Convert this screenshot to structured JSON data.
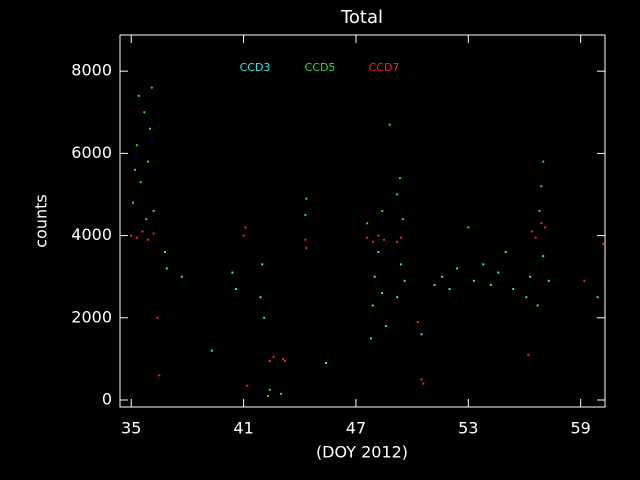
{
  "chart_data": {
    "type": "scatter",
    "title": "Total",
    "x_label": "(DOY 2012)",
    "y_label": "counts",
    "xlim": [
      34.4,
      60.3
    ],
    "ylim": [
      -170,
      8880
    ],
    "xticks": [
      35,
      41,
      47,
      53,
      59
    ],
    "yticks": [
      0,
      2000,
      4000,
      6000,
      8000
    ],
    "series": [
      {
        "name": "CCD3",
        "color": "#33e5e5",
        "x": [
          36.8,
          36.9,
          37.7,
          40.4,
          40.6,
          41.9,
          42.0,
          42.1,
          47.8,
          47.9,
          48.0,
          48.2,
          48.4,
          48.6,
          49.2,
          49.4,
          49.6,
          50.5,
          51.2,
          51.6,
          52.0,
          52.4,
          53.3,
          53.8,
          54.2,
          54.6,
          55.0,
          55.4,
          56.1,
          56.3,
          56.7,
          57.0,
          57.3,
          59.9,
          45.4,
          39.3
        ],
        "values": [
          3600,
          3200,
          3000,
          3100,
          2700,
          2500,
          3300,
          2000,
          1500,
          2300,
          3000,
          3600,
          2600,
          1800,
          2500,
          3300,
          2900,
          1600,
          2800,
          3000,
          2700,
          3200,
          2900,
          3300,
          2800,
          3100,
          3600,
          2700,
          2500,
          3000,
          2300,
          3500,
          2900,
          2500,
          900,
          1200
        ]
      },
      {
        "name": "CCD5",
        "color": "#33dd33",
        "x": [
          35.1,
          35.3,
          35.5,
          35.7,
          35.9,
          36.1,
          36.2,
          35.4,
          35.8,
          36.0,
          35.2,
          42.3,
          42.4,
          43.0,
          44.3,
          44.35,
          47.6,
          48.4,
          49.2,
          49.35,
          49.5,
          48.8,
          56.9,
          57.0,
          56.8,
          53.0
        ],
        "values": [
          4800,
          6200,
          5300,
          7000,
          5800,
          7600,
          4600,
          7400,
          4400,
          6600,
          5600,
          100,
          250,
          150,
          4500,
          4900,
          4300,
          4600,
          5000,
          5400,
          4400,
          6700,
          5200,
          5800,
          4600,
          4200
        ]
      },
      {
        "name": "CCD7",
        "color": "#ff2020",
        "x": [
          35.0,
          35.3,
          35.6,
          35.9,
          36.2,
          36.4,
          36.5,
          41.0,
          41.1,
          42.4,
          42.6,
          43.1,
          43.2,
          44.3,
          44.35,
          47.6,
          47.9,
          48.2,
          48.5,
          49.2,
          49.4,
          50.3,
          50.5,
          50.6,
          56.4,
          56.6,
          56.9,
          57.1,
          59.2,
          60.2,
          41.2,
          56.2
        ],
        "values": [
          4000,
          3950,
          4100,
          3900,
          4050,
          2000,
          600,
          4000,
          4200,
          950,
          1050,
          1000,
          950,
          3900,
          3700,
          3950,
          3850,
          4000,
          3900,
          3850,
          3950,
          1900,
          500,
          400,
          4100,
          3950,
          4300,
          4200,
          2900,
          3800,
          350,
          1100
        ]
      }
    ]
  }
}
